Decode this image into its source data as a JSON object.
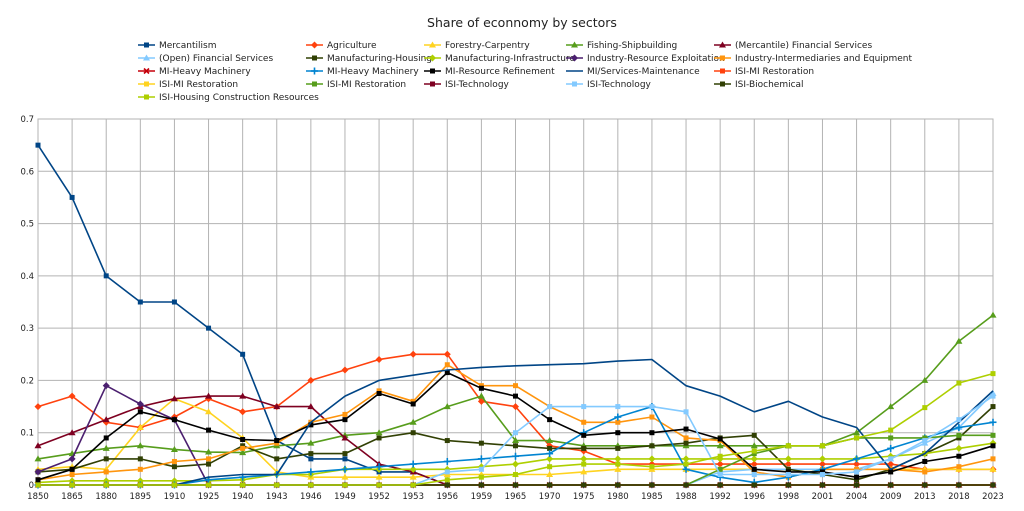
{
  "chart_data": {
    "type": "line",
    "title": "Share of econnomy by sectors",
    "xlabel": "",
    "ylabel": "",
    "ylim": [
      0,
      0.7
    ],
    "yticks": [
      "0",
      "0.1",
      "0.2",
      "0.3",
      "0.4",
      "0.5",
      "0.6",
      "0.7"
    ],
    "grid": true,
    "legend": "top",
    "categories": [
      "1850",
      "1865",
      "1880",
      "1895",
      "1910",
      "1925",
      "1940",
      "1943",
      "1946",
      "1949",
      "1952",
      "1953",
      "1956",
      "1959",
      "1965",
      "1970",
      "1975",
      "1980",
      "1985",
      "1988",
      "1992",
      "1996",
      "1998",
      "2001",
      "2004",
      "2009",
      "2013",
      "2018",
      "2023"
    ],
    "series": [
      {
        "name": "Mercantilism",
        "color": "#004586",
        "marker": "square",
        "values": [
          0.65,
          0.55,
          0.4,
          0.35,
          0.35,
          0.3,
          0.25,
          0.085,
          0.05,
          0.05,
          0.025,
          0.025,
          0,
          0,
          0,
          0,
          0,
          0,
          0,
          0,
          0,
          0,
          0,
          0,
          0,
          0,
          0,
          0,
          0
        ]
      },
      {
        "name": "Agriculture",
        "color": "#ff420e",
        "marker": "diamond",
        "values": [
          0.15,
          0.17,
          0.12,
          0.11,
          0.13,
          0.165,
          0.14,
          0.15,
          0.2,
          0.22,
          0.24,
          0.25,
          0.25,
          0.16,
          0.15,
          0.075,
          0.065,
          0.04,
          0.04,
          0.04,
          0.04,
          0.04,
          0.04,
          0.04,
          0.04,
          0.04,
          0.03,
          0.03,
          0.03
        ]
      },
      {
        "name": "Forestry-Carpentry",
        "color": "#ffd320",
        "marker": "triangle",
        "values": [
          0.03,
          0.035,
          0.03,
          0.11,
          0.165,
          0.14,
          0.09,
          0.025,
          0.015,
          0.015,
          0.015,
          0.015,
          0.02,
          0.02,
          0.02,
          0.02,
          0.025,
          0.03,
          0.03,
          0.03,
          0.03,
          0.03,
          0.03,
          0.03,
          0.03,
          0.03,
          0.03,
          0.03,
          0.03
        ]
      },
      {
        "name": "Fishing-Shipbuilding",
        "color": "#579d1c",
        "marker": "triangle",
        "values": [
          0.05,
          0.06,
          0.07,
          0.075,
          0.068,
          0.063,
          0.062,
          0.075,
          0.08,
          0.095,
          0.1,
          0.12,
          0.15,
          0.17,
          0.085,
          0.085,
          0.075,
          0.075,
          0.075,
          0.075,
          0.075,
          0.075,
          0.075,
          0.075,
          0.1,
          0.15,
          0.2,
          0.275,
          0.325
        ]
      },
      {
        "name": "(Mercantile) Financial Services",
        "color": "#7e0021",
        "marker": "triangle",
        "values": [
          0.075,
          0.1,
          0.125,
          0.15,
          0.165,
          0.17,
          0.17,
          0.15,
          0.15,
          0.09,
          0.04,
          0.025,
          0,
          0,
          0,
          0,
          0,
          0,
          0,
          0,
          0,
          0,
          0,
          0,
          0,
          0,
          0,
          0,
          0
        ]
      },
      {
        "name": "(Open) Financial Services",
        "color": "#83caff",
        "marker": "triangle",
        "values": [
          0,
          0,
          0,
          0,
          0,
          0,
          0,
          0,
          0,
          0,
          0,
          0,
          0,
          0,
          0,
          0,
          0,
          0,
          0,
          0,
          0.025,
          0.03,
          0.03,
          0.03,
          0.03,
          0.05,
          0.08,
          0.11,
          0.175
        ]
      },
      {
        "name": "Manufacturing-Housing",
        "color": "#314004",
        "marker": "square",
        "values": [
          0.025,
          0.03,
          0.05,
          0.05,
          0.035,
          0.04,
          0.075,
          0.05,
          0.06,
          0.06,
          0.09,
          0.1,
          0.085,
          0.08,
          0.075,
          0.07,
          0.07,
          0.07,
          0.075,
          0.08,
          0.09,
          0.095,
          0.03,
          0.02,
          0.01,
          0.03,
          0.06,
          0.09,
          0.15
        ]
      },
      {
        "name": "Manufacturing-Infrastructure",
        "color": "#aecf00",
        "marker": "diamond",
        "values": [
          0.005,
          0.008,
          0.008,
          0.008,
          0.008,
          0.008,
          0.01,
          0.02,
          0.02,
          0.03,
          0.03,
          0.03,
          0.03,
          0.035,
          0.04,
          0.05,
          0.05,
          0.05,
          0.05,
          0.05,
          0.05,
          0.05,
          0.05,
          0.05,
          0.05,
          0.055,
          0.06,
          0.07,
          0.08
        ]
      },
      {
        "name": "Industry-Resource Exploitation",
        "color": "#4b1f6f",
        "marker": "diamond",
        "values": [
          0.025,
          0.05,
          0.19,
          0.155,
          0.125,
          0,
          0,
          0,
          0,
          0,
          0,
          0,
          0,
          0,
          0,
          0,
          0,
          0,
          0,
          0,
          0,
          0,
          0,
          0,
          0,
          0,
          0,
          0,
          0
        ]
      },
      {
        "name": "Industry-Intermediaries and Equipment",
        "color": "#ff950e",
        "marker": "square",
        "values": [
          0.01,
          0.02,
          0.025,
          0.03,
          0.045,
          0.05,
          0.07,
          0.08,
          0.12,
          0.135,
          0.18,
          0.16,
          0.23,
          0.19,
          0.19,
          0.15,
          0.12,
          0.12,
          0.13,
          0.09,
          0.085,
          0.025,
          0.015,
          0.03,
          0.03,
          0.03,
          0.025,
          0.035,
          0.05
        ]
      },
      {
        "name": "MI-Heavy Machinery",
        "color": "#c5000b",
        "marker": "x",
        "values": [
          0,
          0,
          0,
          0,
          0,
          0,
          0,
          0,
          0,
          0,
          0,
          0,
          0,
          0,
          0,
          0,
          0,
          0,
          0,
          0,
          0,
          0,
          0,
          0,
          0,
          0,
          0,
          0,
          0
        ]
      },
      {
        "name": "MI-Heavy Machinery",
        "color": "#0084d1",
        "marker": "plus",
        "values": [
          0,
          0,
          0,
          0,
          0,
          0.01,
          0.015,
          0.02,
          0.025,
          0.03,
          0.035,
          0.04,
          0.045,
          0.05,
          0.055,
          0.06,
          0.1,
          0.13,
          0.15,
          0.03,
          0.015,
          0.005,
          0.015,
          0.03,
          0.05,
          0.07,
          0.09,
          0.11,
          0.12
        ]
      },
      {
        "name": "MI-Resource Refinement",
        "color": "#000000",
        "marker": "square",
        "values": [
          0.01,
          0.03,
          0.09,
          0.14,
          0.125,
          0.105,
          0.087,
          0.085,
          0.115,
          0.125,
          0.175,
          0.155,
          0.215,
          0.185,
          0.17,
          0.125,
          0.095,
          0.1,
          0.1,
          0.107,
          0.088,
          0.03,
          0.025,
          0.025,
          0.015,
          0.025,
          0.045,
          0.055,
          0.075
        ]
      },
      {
        "name": "MI/Services-Maintenance",
        "color": "#004586",
        "marker": "none",
        "values": [
          0,
          0,
          0,
          0,
          0,
          0.015,
          0.02,
          0.02,
          0.12,
          0.17,
          0.2,
          0.21,
          0.22,
          0.225,
          0.228,
          0.23,
          0.232,
          0.237,
          0.24,
          0.19,
          0.17,
          0.14,
          0.16,
          0.13,
          0.11,
          0.03,
          0.06,
          0.12,
          0.18
        ]
      },
      {
        "name": "ISI-MI Restoration",
        "color": "#ff420e",
        "marker": "square",
        "values": [
          0,
          0,
          0,
          0,
          0,
          0,
          0,
          0,
          0,
          0,
          0,
          0,
          0,
          0,
          0,
          0,
          0,
          0,
          0,
          0,
          0,
          0,
          0,
          0,
          0,
          0,
          0,
          0,
          0
        ]
      },
      {
        "name": "ISI-MI Restoration",
        "color": "#ffd320",
        "marker": "square",
        "values": [
          0,
          0,
          0,
          0,
          0,
          0,
          0,
          0,
          0,
          0,
          0,
          0,
          0,
          0,
          0,
          0,
          0,
          0,
          0,
          0,
          0,
          0,
          0,
          0,
          0,
          0,
          0,
          0,
          0
        ]
      },
      {
        "name": "ISI-MI Restoration",
        "color": "#579d1c",
        "marker": "square",
        "values": [
          0,
          0,
          0,
          0,
          0,
          0,
          0,
          0,
          0,
          0,
          0,
          0,
          0,
          0,
          0,
          0,
          0,
          0,
          0,
          0,
          0.03,
          0.06,
          0.075,
          0.075,
          0.09,
          0.09,
          0.09,
          0.095,
          0.095
        ]
      },
      {
        "name": "ISI-Technology",
        "color": "#7e0021",
        "marker": "square",
        "values": [
          0,
          0,
          0,
          0,
          0,
          0,
          0,
          0,
          0,
          0,
          0,
          0,
          0,
          0,
          0,
          0,
          0,
          0,
          0,
          0,
          0,
          0,
          0,
          0,
          0,
          0,
          0,
          0,
          0
        ]
      },
      {
        "name": "ISI-Technology",
        "color": "#83caff",
        "marker": "square",
        "values": [
          0,
          0,
          0,
          0,
          0,
          0,
          0,
          0,
          0,
          0,
          0,
          0,
          0.025,
          0.03,
          0.1,
          0.15,
          0.15,
          0.15,
          0.15,
          0.14,
          0.02,
          0.02,
          0.02,
          0.02,
          0.025,
          0.05,
          0.085,
          0.125,
          0.17
        ]
      },
      {
        "name": "ISI-Biochemical",
        "color": "#314004",
        "marker": "square",
        "values": [
          0,
          0,
          0,
          0,
          0,
          0,
          0,
          0,
          0,
          0,
          0,
          0,
          0,
          0,
          0,
          0,
          0,
          0,
          0,
          0,
          0,
          0,
          0,
          0,
          0,
          0,
          0,
          0,
          0
        ]
      },
      {
        "name": "ISI-Housing Construction Resources",
        "color": "#aecf00",
        "marker": "square",
        "values": [
          0,
          0,
          0,
          0,
          0,
          0,
          0,
          0,
          0,
          0,
          0,
          0,
          0.01,
          0.015,
          0.02,
          0.035,
          0.04,
          0.04,
          0.035,
          0.04,
          0.055,
          0.065,
          0.075,
          0.075,
          0.09,
          0.105,
          0.148,
          0.195,
          0.213
        ]
      }
    ]
  }
}
